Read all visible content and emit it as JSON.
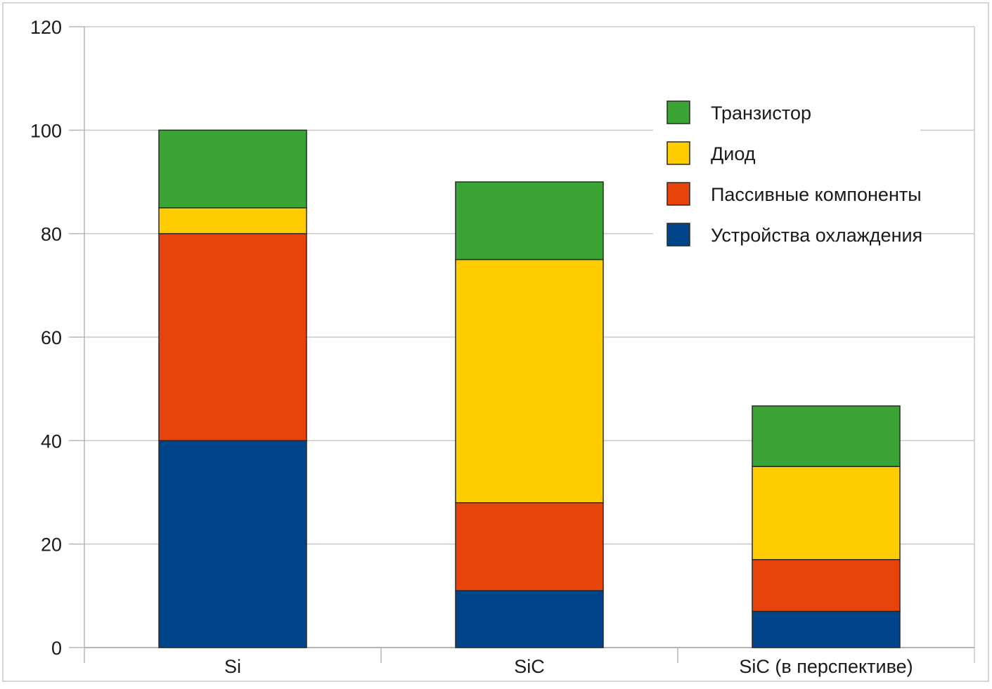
{
  "chart_data": {
    "type": "bar",
    "stacked": true,
    "title": "",
    "xlabel": "",
    "ylabel": "",
    "ylim": [
      0,
      120
    ],
    "yticks": [
      0,
      20,
      40,
      60,
      80,
      100,
      120
    ],
    "grid": true,
    "legend_position": "top-right",
    "categories": [
      "Si",
      "SiC",
      "SiC (в перспективе)"
    ],
    "series": [
      {
        "name": "Устройства охлаждения",
        "color": "#00458a",
        "values": [
          40,
          11,
          7
        ]
      },
      {
        "name": "Пассивные компоненты",
        "color": "#e8430b",
        "values": [
          40,
          17,
          10
        ]
      },
      {
        "name": "Диод",
        "color": "#ffcc00",
        "values": [
          5,
          47,
          18
        ]
      },
      {
        "name": "Транзистор",
        "color": "#3aa535",
        "values": [
          15,
          15,
          11.7
        ]
      }
    ],
    "legend_order": [
      "Транзистор",
      "Диод",
      "Пассивные компоненты",
      "Устройства охлаждения"
    ]
  }
}
